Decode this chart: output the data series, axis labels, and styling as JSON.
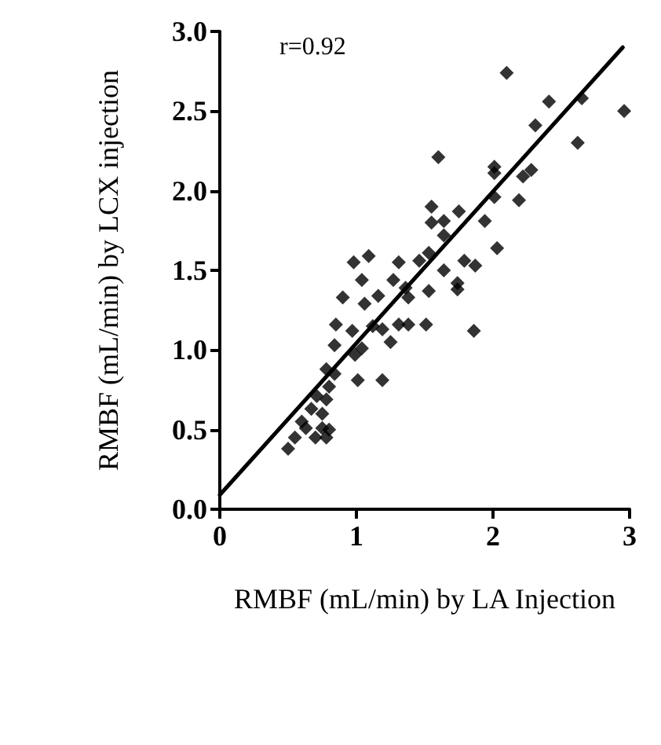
{
  "chart_data": {
    "type": "scatter",
    "xlabel": "RMBF (mL/min) by LA Injection",
    "ylabel": "RMBF (mL/min) by LCX injection",
    "annotations": [
      "r=0.92"
    ],
    "xlim": [
      0,
      3
    ],
    "xticks": [
      0,
      1,
      2,
      3
    ],
    "ylim": [
      0,
      3
    ],
    "yticks": [
      {
        "value": 0,
        "label": "0.0"
      },
      {
        "value": 0.5,
        "label": "0.5"
      },
      {
        "value": 1,
        "label": "1.0"
      },
      {
        "value": 1.5,
        "label": "1.5"
      },
      {
        "value": 2,
        "label": "2.0"
      },
      {
        "value": 2.5,
        "label": "2.5"
      },
      {
        "value": 3,
        "label": "3.0"
      }
    ],
    "grid": false,
    "marker": "diamond",
    "series": [
      {
        "color": "#000000",
        "x": [
          2.1,
          2.41,
          2.65,
          2.96,
          2.31,
          2.62,
          1.6,
          2.01,
          2.01,
          2.28,
          2.22,
          2.01,
          2.19,
          1.55,
          1.64,
          1.75,
          1.55,
          1.94,
          1.64,
          2.03,
          1.53,
          1.79,
          1.87,
          1.64,
          0.98,
          1.09,
          1.31,
          1.46,
          1.04,
          1.27,
          1.36,
          1.53,
          1.74,
          1.74,
          0.9,
          1.16,
          1.06,
          1.38,
          0.85,
          0.97,
          1.12,
          1.19,
          1.31,
          1.38,
          1.51,
          1.86,
          1.25,
          0.84,
          1.04,
          0.99,
          0.78,
          0.84,
          1.01,
          1.19,
          0.8,
          0.71,
          0.78,
          0.67,
          0.75,
          0.63,
          0.75,
          0.5,
          0.55,
          0.7,
          0.78,
          0.8,
          0.6
        ],
        "values": [
          2.74,
          2.56,
          2.58,
          2.5,
          2.41,
          2.3,
          2.21,
          2.15,
          2.11,
          2.13,
          2.09,
          1.96,
          1.94,
          1.8,
          1.81,
          1.87,
          1.9,
          1.81,
          1.72,
          1.64,
          1.61,
          1.56,
          1.53,
          1.5,
          1.55,
          1.59,
          1.55,
          1.56,
          1.44,
          1.44,
          1.39,
          1.37,
          1.42,
          1.38,
          1.33,
          1.34,
          1.29,
          1.33,
          1.16,
          1.12,
          1.15,
          1.13,
          1.16,
          1.16,
          1.16,
          1.12,
          1.05,
          1.03,
          1.01,
          0.97,
          0.88,
          0.85,
          0.81,
          0.81,
          0.77,
          0.71,
          0.69,
          0.63,
          0.6,
          0.51,
          0.51,
          0.38,
          0.45,
          0.45,
          0.45,
          0.5,
          0.55
        ]
      },
      {
        "type": "line",
        "color": "#000000",
        "x": [
          0,
          2.95
        ],
        "values": [
          0.09,
          2.9
        ],
        "marker": "none",
        "line_style": "solid"
      }
    ]
  }
}
